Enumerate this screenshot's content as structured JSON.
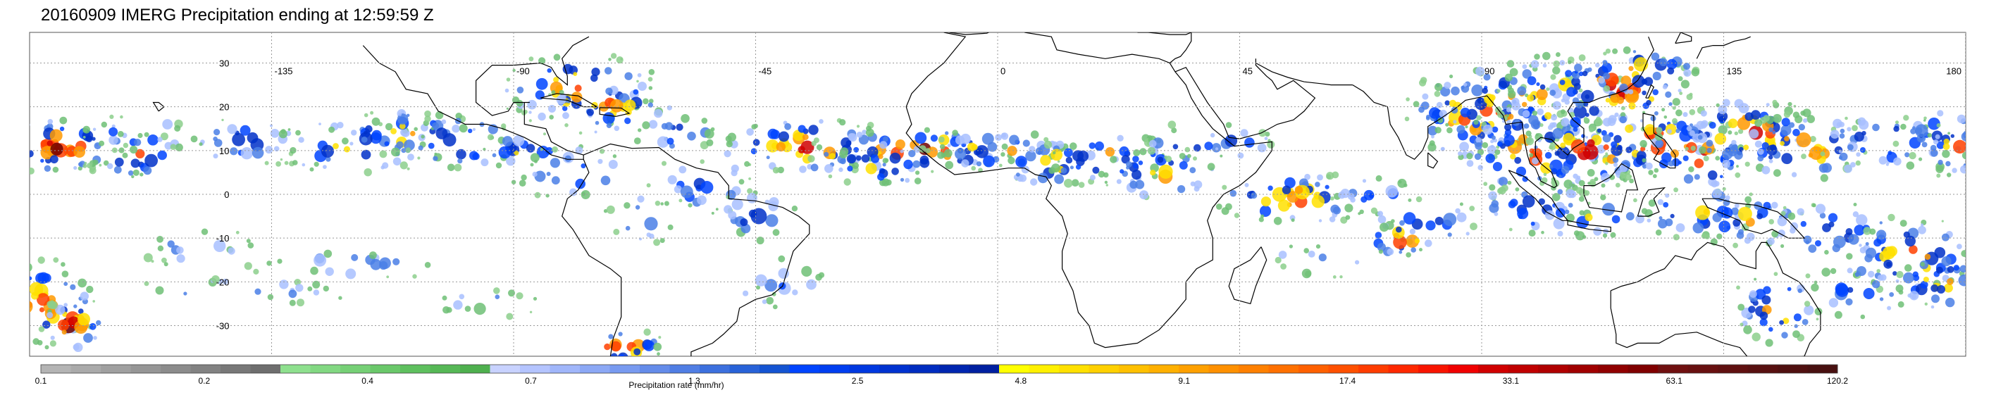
{
  "title": "20160909 IMERG Precipitation ending at 12:59:59 Z",
  "map": {
    "lon_range": [
      -180,
      180
    ],
    "lat_range": [
      -37,
      37
    ],
    "lat_labels": [
      "30",
      "20",
      "10",
      "0",
      "-10",
      "-20",
      "-30"
    ],
    "lat_values": [
      30,
      20,
      10,
      0,
      -10,
      -20,
      -30
    ],
    "lon_labels": [
      "-135",
      "-90",
      "-45",
      "0",
      "45",
      "90",
      "135",
      "180"
    ],
    "lon_values": [
      -135,
      -90,
      -45,
      0,
      45,
      90,
      135,
      180
    ],
    "grid": true
  },
  "colorbar": {
    "title": "Precipitation rate (mm/hr)",
    "tick_labels": [
      "0.1",
      "0.2",
      "0.4",
      "0.7",
      "1.3",
      "2.5",
      "4.8",
      "9.1",
      "17.4",
      "33.1",
      "63.1",
      "120.2"
    ],
    "colors": [
      "#b4b4b4",
      "#aaaaaa",
      "#a0a0a0",
      "#969696",
      "#8c8c8c",
      "#828282",
      "#787878",
      "#6e6e6e",
      "#8ee08e",
      "#82d882",
      "#76d076",
      "#6ac86a",
      "#5ec05e",
      "#56b856",
      "#4eb04e",
      "#c8d2ff",
      "#b4c4ff",
      "#a0b6fa",
      "#8ca8f5",
      "#789af0",
      "#648cea",
      "#507ee4",
      "#3c70de",
      "#2862d8",
      "#1454d2",
      "#0044ff",
      "#003ef0",
      "#0038e0",
      "#0032d0",
      "#002cc0",
      "#0026b0",
      "#0020a0",
      "#ffff00",
      "#fff000",
      "#ffe000",
      "#ffd000",
      "#ffc000",
      "#ffb000",
      "#ffa000",
      "#ff9000",
      "#ff8000",
      "#ff7000",
      "#ff6000",
      "#ff5000",
      "#ff3c00",
      "#ff2800",
      "#f81400",
      "#f00000",
      "#d00000",
      "#c00000",
      "#b00000",
      "#a00000",
      "#900000",
      "#800000",
      "#701010",
      "#681010",
      "#601010",
      "#581010",
      "#501010",
      "#481010"
    ]
  }
}
